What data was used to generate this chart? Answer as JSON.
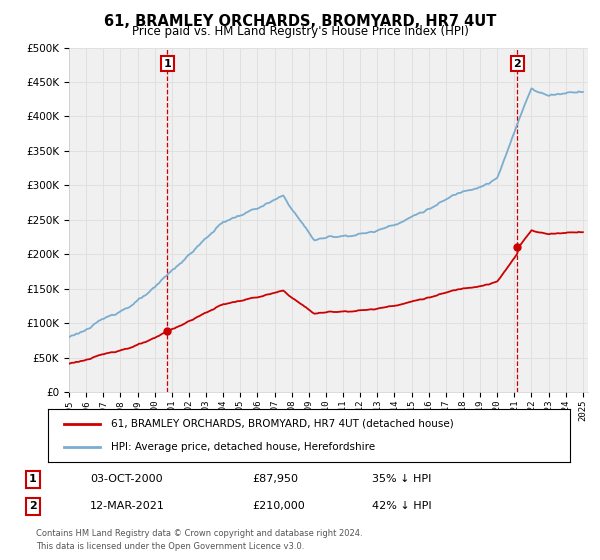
{
  "title": "61, BRAMLEY ORCHARDS, BROMYARD, HR7 4UT",
  "subtitle": "Price paid vs. HM Land Registry's House Price Index (HPI)",
  "legend_line1": "61, BRAMLEY ORCHARDS, BROMYARD, HR7 4UT (detached house)",
  "legend_line2": "HPI: Average price, detached house, Herefordshire",
  "annotation1_date": "03-OCT-2000",
  "annotation1_price": "£87,950",
  "annotation1_note": "35% ↓ HPI",
  "annotation2_date": "12-MAR-2021",
  "annotation2_price": "£210,000",
  "annotation2_note": "42% ↓ HPI",
  "footnote1": "Contains HM Land Registry data © Crown copyright and database right 2024.",
  "footnote2": "This data is licensed under the Open Government Licence v3.0.",
  "sale1_year": 2000.75,
  "sale1_price": 87950,
  "sale2_year": 2021.17,
  "sale2_price": 210000,
  "red_color": "#cc0000",
  "blue_color": "#7aadcf",
  "vline_color": "#cc0000",
  "grid_color": "#e0e0e0",
  "bg_color": "#ffffff",
  "plot_bg": "#f0f0f0",
  "box_color": "#cc0000"
}
